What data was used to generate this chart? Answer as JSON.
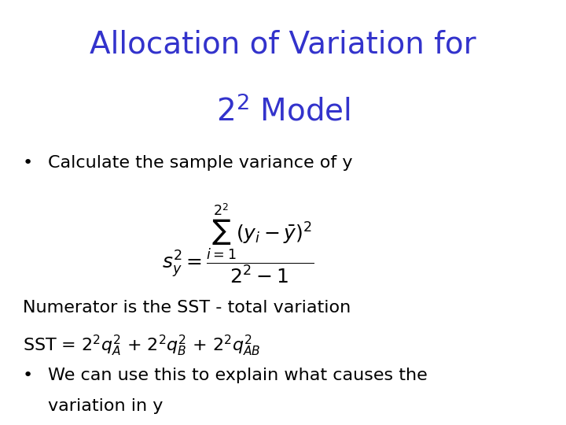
{
  "title_line1": "Allocation of Variation for",
  "title_line2": "$2^2$ Model",
  "title_color": "#3333cc",
  "title_fontsize": 28,
  "bg_color": "#ffffff",
  "bullet1": "Calculate the sample variance of y",
  "formula": "$s_y^2 = \\dfrac{\\sum_{i=1}^{2^2}(y_i - \\bar{y})^2}{2^2 - 1}$",
  "formula_fontsize": 18,
  "text_color": "#000000",
  "body_fontsize": 16,
  "line1": "Numerator is the SST - total variation",
  "line2_pre": "SST = $2^2q_A^2$ + $2^2q_B^2$ + $2^2q_{AB}^2$",
  "bullet2_line1": "We can use this to explain what causes the",
  "bullet2_line2": "variation in y"
}
